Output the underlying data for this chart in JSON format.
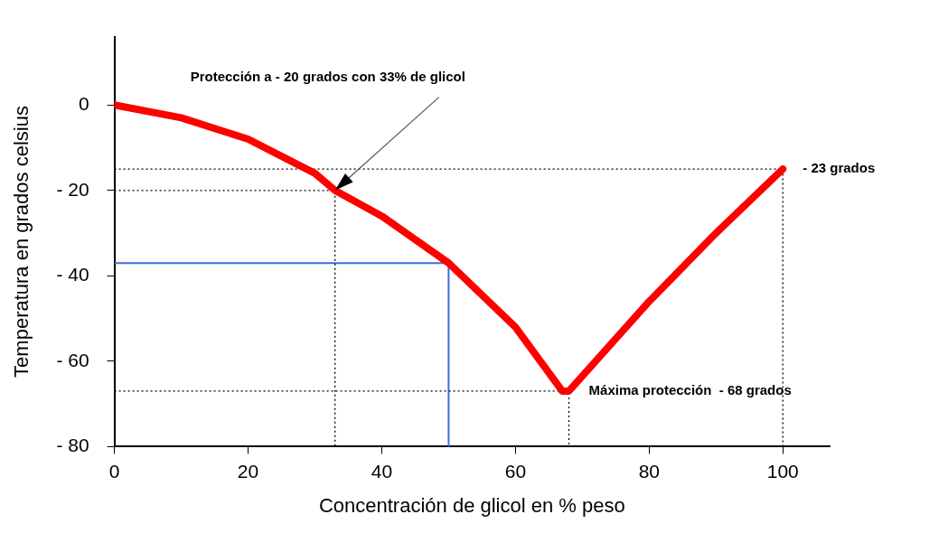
{
  "chart_data": {
    "type": "line",
    "xlabel": "Concentración de glicol en % peso",
    "ylabel": "Temperatura en grados celsius",
    "xlim": [
      0,
      107
    ],
    "ylim": [
      -80,
      16
    ],
    "xticks": [
      0,
      20,
      40,
      60,
      80,
      100
    ],
    "yticks": [
      0,
      {
        "value": -20,
        "label": "- 20"
      },
      {
        "value": -40,
        "label": "- 40"
      },
      {
        "value": -60,
        "label": "- 60"
      },
      {
        "value": -80,
        "label": "- 80"
      }
    ],
    "grid": false,
    "legend": false,
    "marker": "none",
    "series": [
      {
        "type": "line",
        "color": "#ff0000",
        "line_style": "solid",
        "x": [
          0,
          10,
          20,
          30,
          33,
          40,
          50,
          60,
          67,
          68,
          80,
          90,
          100
        ],
        "values": [
          0,
          -3,
          -8,
          -16,
          -20,
          -26,
          -37,
          -52,
          -67,
          -67,
          -46,
          -30,
          -15
        ]
      },
      {
        "type": "line",
        "color": "#000000",
        "line_style": "dotted",
        "x": [
          0,
          33,
          33
        ],
        "values": [
          -20,
          -20,
          -80
        ]
      },
      {
        "type": "line",
        "color": "#000000",
        "line_style": "dotted",
        "x": [
          0,
          100,
          100
        ],
        "values": [
          -15,
          -15,
          -80
        ]
      },
      {
        "type": "line",
        "color": "#000000",
        "line_style": "dotted",
        "x": [
          0,
          68,
          68
        ],
        "values": [
          -67,
          -67,
          -80
        ]
      },
      {
        "type": "line",
        "color": "#3a6fd8",
        "line_style": "solid",
        "x": [
          0,
          50,
          50
        ],
        "values": [
          -37,
          -37,
          -80
        ]
      }
    ],
    "annotations": [
      {
        "text": "Protección a - 20 grados con 33% de glicol",
        "x": 33,
        "y": -20
      },
      {
        "text": "- 23 grados",
        "x": 100,
        "y": -15
      },
      {
        "text": "Máxima protección  - 68 grados",
        "x": 68,
        "y": -67
      }
    ]
  }
}
